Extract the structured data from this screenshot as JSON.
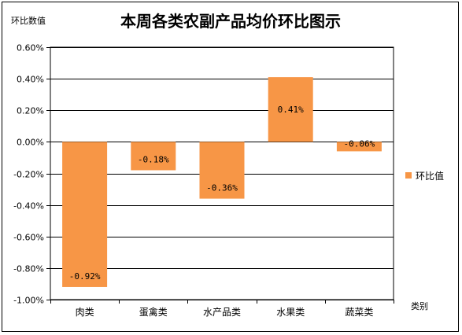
{
  "chart_data": {
    "type": "bar",
    "title": "本周各类农副产品均价环比图示",
    "ylabel": "环比数值",
    "xlabel": "类别",
    "categories": [
      "肉类",
      "蛋禽类",
      "水产品类",
      "水果类",
      "蔬菜类"
    ],
    "series": [
      {
        "name": "环比值",
        "values": [
          -0.92,
          -0.18,
          -0.36,
          0.41,
          -0.06
        ],
        "data_labels": [
          "-0.92%",
          "-0.18%",
          "-0.36%",
          "0.41%",
          "-0.06%"
        ]
      }
    ],
    "ylim": [
      -1.0,
      0.6
    ],
    "yticks": [
      0.6,
      0.4,
      0.2,
      0.0,
      -0.2,
      -0.4,
      -0.6,
      -0.8,
      -1.0
    ],
    "ytick_labels": [
      "0.60%",
      "0.40%",
      "0.20%",
      "0.00%",
      "-0.20%",
      "-0.40%",
      "-0.60%",
      "-0.80%",
      "-1.00%"
    ],
    "grid": true,
    "legend": "right",
    "colors": {
      "bar": "#F79646",
      "grid": "#000000"
    }
  }
}
